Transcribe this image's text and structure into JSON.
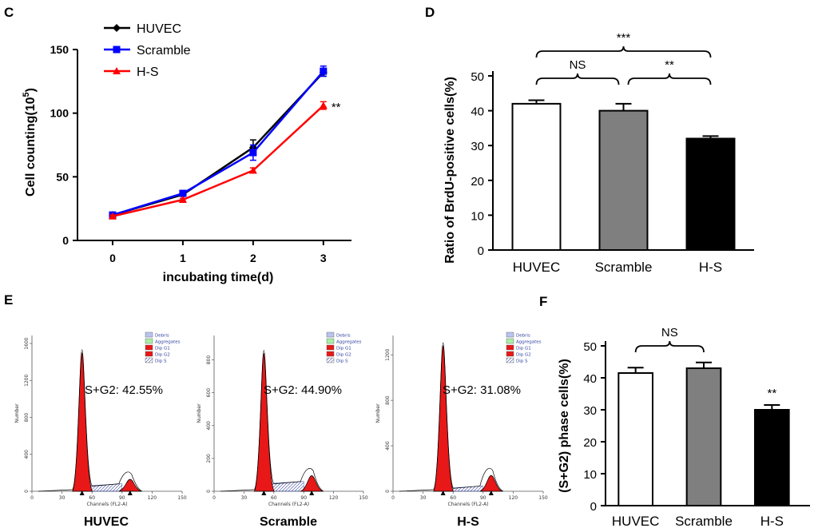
{
  "panels": {
    "C": "C",
    "D": "D",
    "E": "E",
    "F": "F"
  },
  "chart_data": [
    {
      "id": "C",
      "type": "line",
      "xlabel": "incubating time(d)",
      "ylabel": "Cell counting(10",
      "ylabel_sup": "5",
      "ylabel_close": ")",
      "x": [
        0,
        1,
        2,
        3
      ],
      "xticks": [
        "0",
        "1",
        "2",
        "3"
      ],
      "xlim": [
        -0.5,
        3.4
      ],
      "ylim": [
        0,
        150
      ],
      "yticks": [
        "0",
        "50",
        "100",
        "150"
      ],
      "series": [
        {
          "name": "HUVEC",
          "color": "#000000",
          "marker": "diamond",
          "values": [
            20,
            36,
            73,
            132
          ],
          "err": [
            1,
            1,
            6,
            3
          ]
        },
        {
          "name": "Scramble",
          "color": "#0000ff",
          "marker": "square",
          "values": [
            20,
            37,
            69,
            133
          ],
          "err": [
            1,
            1,
            6,
            4
          ]
        },
        {
          "name": "H-S",
          "color": "#ff0000",
          "marker": "triangle",
          "values": [
            19,
            32,
            55,
            106
          ],
          "err": [
            1,
            1,
            2,
            3
          ]
        }
      ],
      "annotations": [
        "**"
      ]
    },
    {
      "id": "D",
      "type": "bar",
      "ylabel": "Ratio of BrdU-positive cells(%)",
      "categories": [
        "HUVEC",
        "Scramble",
        "H-S"
      ],
      "values": [
        42,
        40,
        32
      ],
      "err": [
        1,
        2,
        0.7
      ],
      "colors": [
        "#ffffff",
        "#7f7f7f",
        "#000000"
      ],
      "ylim": [
        0,
        50
      ],
      "yticks": [
        "0",
        "10",
        "20",
        "30",
        "40",
        "50"
      ],
      "significance": [
        {
          "from": 0,
          "to": 1,
          "label": "NS"
        },
        {
          "from": 1,
          "to": 2,
          "label": "**"
        },
        {
          "from": 0,
          "to": 2,
          "label": "***"
        }
      ]
    },
    {
      "id": "F",
      "type": "bar",
      "ylabel": "(S+G2) phase cells(%)",
      "categories": [
        "HUVEC",
        "Scramble",
        "H-S"
      ],
      "values": [
        41.5,
        43,
        30
      ],
      "err": [
        1.7,
        1.8,
        1.5
      ],
      "colors": [
        "#ffffff",
        "#7f7f7f",
        "#000000"
      ],
      "ylim": [
        0,
        50
      ],
      "yticks": [
        "0",
        "10",
        "20",
        "30",
        "40",
        "50"
      ],
      "significance": [
        {
          "from": 0,
          "to": 1,
          "label": "NS"
        }
      ],
      "star_labels": [
        {
          "index": 2,
          "label": "**"
        }
      ]
    }
  ],
  "flow": {
    "xlabel": "Channels (FL2-A)",
    "ylabel": "Number",
    "xticks": [
      "0",
      "30",
      "60",
      "90",
      "120",
      "150"
    ],
    "legend": [
      "Debris",
      "Aggregates",
      "Dip G1",
      "Dip G2",
      "Dip S"
    ],
    "legend_colors": [
      "#b8c4f0",
      "#a8f0a8",
      "#e81818",
      "#e81818",
      "#ffffff"
    ],
    "plots": [
      {
        "name": "HUVEC",
        "annotation": "S+G2: 42.55%",
        "yticks": [
          "0",
          "400",
          "800",
          "1200",
          "1600"
        ],
        "ymax": 1600,
        "g1peak": 1500,
        "g2peak": 130,
        "speak": 55
      },
      {
        "name": "Scramble",
        "annotation": "S+G2: 44.90%",
        "yticks": [
          "0",
          "200",
          "400",
          "600",
          "800"
        ],
        "ymax": 900,
        "g1peak": 840,
        "g2peak": 95,
        "speak": 45
      },
      {
        "name": "H-S",
        "annotation": "S+G2: 31.08%",
        "yticks": [
          "0",
          "400",
          "800",
          "1200"
        ],
        "ymax": 1300,
        "g1peak": 1280,
        "g2peak": 140,
        "speak": 25
      }
    ]
  }
}
